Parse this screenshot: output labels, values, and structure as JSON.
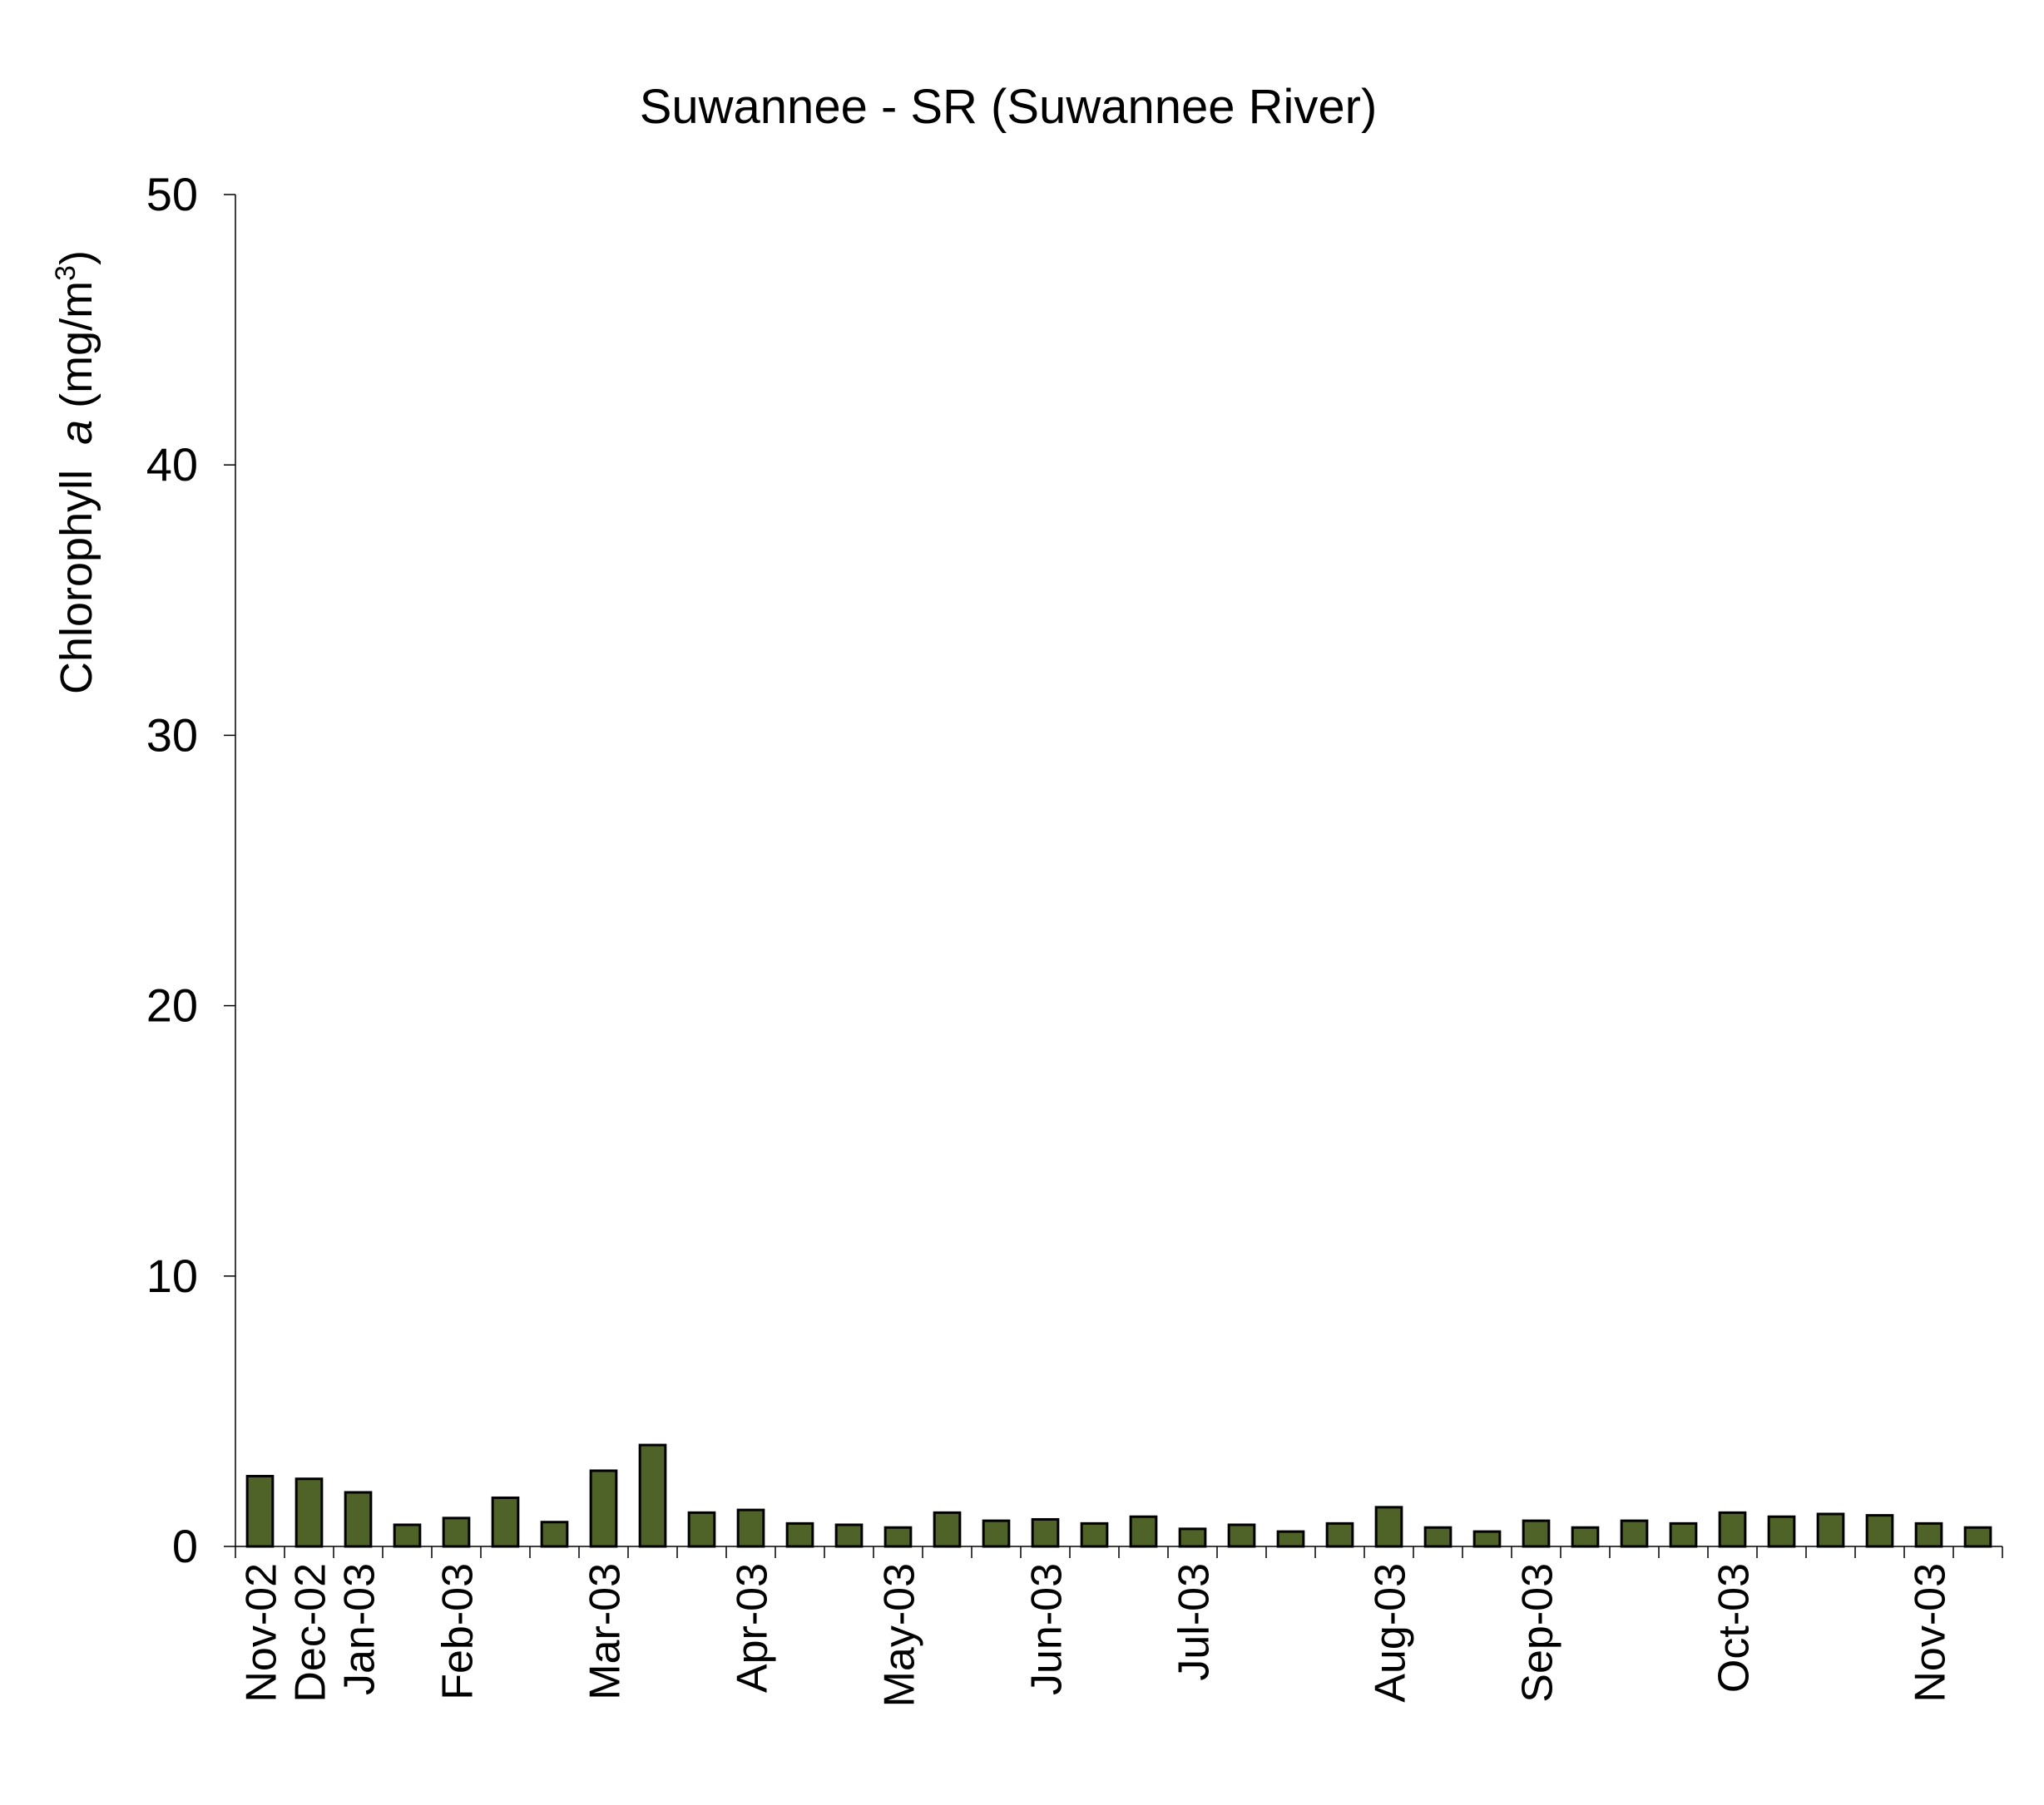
{
  "chart_data": {
    "type": "bar",
    "title": "Suwannee - SR (Suwannee River)",
    "ylabel": {
      "main": "Chlorophyll",
      "italic": "a",
      "unit_open": "(mg/m",
      "unit_sup": "3",
      "unit_close": ")"
    },
    "ylim": [
      0,
      50
    ],
    "yticks": [
      "0",
      "10",
      "20",
      "30",
      "40",
      "50"
    ],
    "grid": false,
    "legend": "none",
    "bar_color": "#4f6228",
    "bar_edge_color": "#000000",
    "x_tick_labels": [
      {
        "label": "Nov-02",
        "slot": 0
      },
      {
        "label": "Dec-02",
        "slot": 1
      },
      {
        "label": "Jan-03",
        "slot": 2
      },
      {
        "label": "Feb-03",
        "slot": 4
      },
      {
        "label": "Mar-03",
        "slot": 7
      },
      {
        "label": "Apr-03",
        "slot": 10
      },
      {
        "label": "May-03",
        "slot": 13
      },
      {
        "label": "Jun-03",
        "slot": 16
      },
      {
        "label": "Jul-03",
        "slot": 19
      },
      {
        "label": "Aug-03",
        "slot": 23
      },
      {
        "label": "Sep-03",
        "slot": 26
      },
      {
        "label": "Oct-03",
        "slot": 30
      },
      {
        "label": "Nov-03",
        "slot": 34
      }
    ],
    "values": [
      2.6,
      2.5,
      2.0,
      0.8,
      1.05,
      1.8,
      0.9,
      2.8,
      3.75,
      1.25,
      1.35,
      0.85,
      0.8,
      0.7,
      1.25,
      0.95,
      1.0,
      0.85,
      1.1,
      0.65,
      0.8,
      0.55,
      0.85,
      1.45,
      0.7,
      0.55,
      0.95,
      0.7,
      0.95,
      0.85,
      1.25,
      1.1,
      1.2,
      1.15,
      0.85,
      0.7
    ]
  }
}
